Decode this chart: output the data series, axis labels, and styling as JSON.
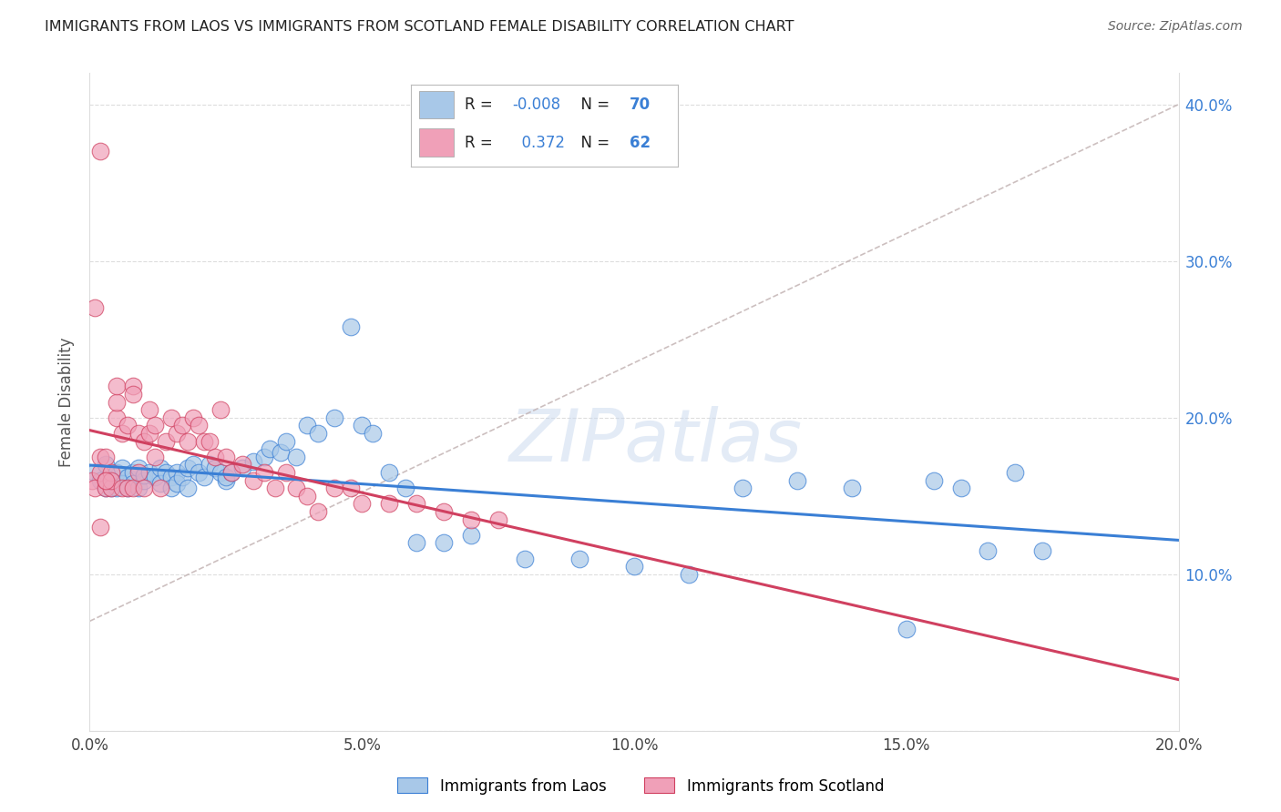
{
  "title": "IMMIGRANTS FROM LAOS VS IMMIGRANTS FROM SCOTLAND FEMALE DISABILITY CORRELATION CHART",
  "source": "Source: ZipAtlas.com",
  "ylabel": "Female Disability",
  "legend_label1": "Immigrants from Laos",
  "legend_label2": "Immigrants from Scotland",
  "R1": -0.008,
  "N1": 70,
  "R2": 0.372,
  "N2": 62,
  "color1": "#a8c8e8",
  "color2": "#f0a0b8",
  "trend1_color": "#3a7fd5",
  "trend2_color": "#d04060",
  "trend_dash_color": "#c0b0b0",
  "xmin": 0.0,
  "xmax": 0.2,
  "ymin": 0.0,
  "ymax": 0.42,
  "background_color": "#ffffff",
  "laos_x": [
    0.001,
    0.002,
    0.003,
    0.003,
    0.004,
    0.004,
    0.005,
    0.005,
    0.006,
    0.006,
    0.007,
    0.007,
    0.008,
    0.008,
    0.009,
    0.009,
    0.01,
    0.01,
    0.011,
    0.012,
    0.013,
    0.013,
    0.014,
    0.015,
    0.015,
    0.016,
    0.016,
    0.017,
    0.018,
    0.018,
    0.019,
    0.02,
    0.021,
    0.022,
    0.023,
    0.024,
    0.025,
    0.025,
    0.026,
    0.028,
    0.03,
    0.032,
    0.033,
    0.035,
    0.036,
    0.038,
    0.04,
    0.042,
    0.045,
    0.048,
    0.05,
    0.052,
    0.055,
    0.058,
    0.06,
    0.065,
    0.07,
    0.08,
    0.09,
    0.1,
    0.11,
    0.12,
    0.13,
    0.14,
    0.15,
    0.155,
    0.16,
    0.165,
    0.17,
    0.175
  ],
  "laos_y": [
    0.165,
    0.16,
    0.155,
    0.17,
    0.16,
    0.155,
    0.165,
    0.155,
    0.168,
    0.158,
    0.162,
    0.155,
    0.165,
    0.158,
    0.168,
    0.155,
    0.16,
    0.163,
    0.165,
    0.162,
    0.168,
    0.158,
    0.165,
    0.162,
    0.155,
    0.165,
    0.158,
    0.162,
    0.168,
    0.155,
    0.17,
    0.165,
    0.162,
    0.17,
    0.168,
    0.165,
    0.16,
    0.162,
    0.165,
    0.168,
    0.172,
    0.175,
    0.18,
    0.178,
    0.185,
    0.175,
    0.195,
    0.19,
    0.2,
    0.258,
    0.195,
    0.19,
    0.165,
    0.155,
    0.12,
    0.12,
    0.125,
    0.11,
    0.11,
    0.105,
    0.1,
    0.155,
    0.16,
    0.155,
    0.065,
    0.16,
    0.155,
    0.115,
    0.165,
    0.115
  ],
  "scotland_x": [
    0.0005,
    0.001,
    0.001,
    0.002,
    0.002,
    0.002,
    0.003,
    0.003,
    0.003,
    0.004,
    0.004,
    0.004,
    0.005,
    0.005,
    0.005,
    0.006,
    0.006,
    0.007,
    0.007,
    0.008,
    0.008,
    0.008,
    0.009,
    0.009,
    0.01,
    0.01,
    0.011,
    0.011,
    0.012,
    0.012,
    0.013,
    0.014,
    0.015,
    0.016,
    0.017,
    0.018,
    0.019,
    0.02,
    0.021,
    0.022,
    0.023,
    0.024,
    0.025,
    0.026,
    0.028,
    0.03,
    0.032,
    0.034,
    0.036,
    0.038,
    0.04,
    0.042,
    0.045,
    0.048,
    0.05,
    0.055,
    0.06,
    0.065,
    0.07,
    0.075,
    0.002,
    0.003
  ],
  "scotland_y": [
    0.16,
    0.27,
    0.155,
    0.175,
    0.165,
    0.37,
    0.155,
    0.16,
    0.175,
    0.155,
    0.165,
    0.16,
    0.2,
    0.21,
    0.22,
    0.155,
    0.19,
    0.155,
    0.195,
    0.155,
    0.22,
    0.215,
    0.165,
    0.19,
    0.155,
    0.185,
    0.19,
    0.205,
    0.175,
    0.195,
    0.155,
    0.185,
    0.2,
    0.19,
    0.195,
    0.185,
    0.2,
    0.195,
    0.185,
    0.185,
    0.175,
    0.205,
    0.175,
    0.165,
    0.17,
    0.16,
    0.165,
    0.155,
    0.165,
    0.155,
    0.15,
    0.14,
    0.155,
    0.155,
    0.145,
    0.145,
    0.145,
    0.14,
    0.135,
    0.135,
    0.13,
    0.16
  ]
}
